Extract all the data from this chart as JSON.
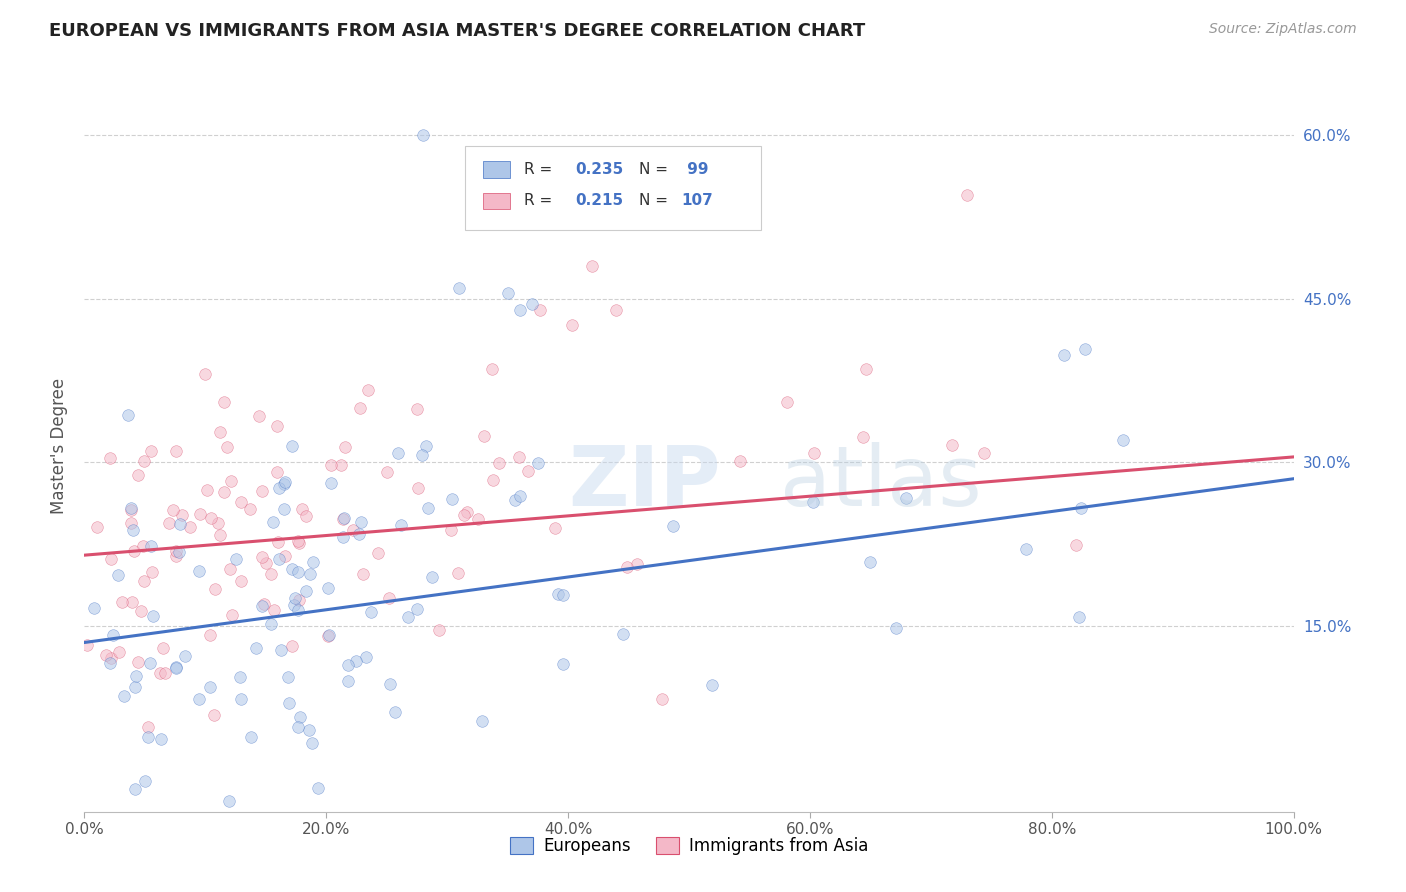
{
  "title": "EUROPEAN VS IMMIGRANTS FROM ASIA MASTER'S DEGREE CORRELATION CHART",
  "source": "Source: ZipAtlas.com",
  "ylabel": "Master's Degree",
  "legend_european_label": "Europeans",
  "legend_asia_label": "Immigrants from Asia",
  "european_R": 0.235,
  "european_N": 99,
  "asia_R": 0.215,
  "asia_N": 107,
  "xmin": 0.0,
  "xmax": 1.0,
  "ymin": -0.02,
  "ymax": 0.65,
  "xticks": [
    0.0,
    0.2,
    0.4,
    0.6,
    0.8,
    1.0
  ],
  "yticks": [
    0.15,
    0.3,
    0.45,
    0.6
  ],
  "xtick_labels": [
    "0.0%",
    "20.0%",
    "40.0%",
    "60.0%",
    "80.0%",
    "100.0%"
  ],
  "ytick_labels": [
    "15.0%",
    "30.0%",
    "45.0%",
    "60.0%"
  ],
  "color_european": "#aec6e8",
  "color_asia": "#f4b8c8",
  "line_color_european": "#4472c4",
  "line_color_asia": "#d94f6e",
  "background_color": "#ffffff",
  "grid_color": "#d0d0d0",
  "title_color": "#222222",
  "marker_size": 70,
  "marker_alpha": 0.55,
  "eu_line_start_y": 0.135,
  "eu_line_end_y": 0.285,
  "as_line_start_y": 0.215,
  "as_line_end_y": 0.305,
  "seed_european": 12,
  "seed_asia": 55
}
